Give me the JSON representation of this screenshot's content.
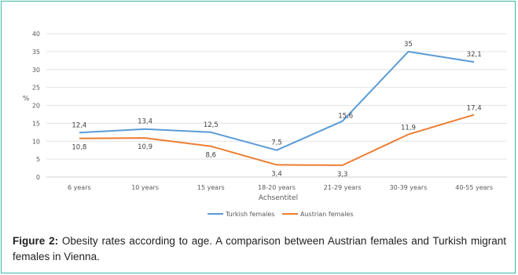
{
  "chart_data": {
    "type": "line",
    "categories": [
      "6 years",
      "10 years",
      "15 years",
      "18-20 years",
      "21-29 years",
      "30-39 years",
      "40-55 years"
    ],
    "series": [
      {
        "name": "Turkish females",
        "color": "#5b9bd5",
        "values": [
          12.4,
          13.4,
          12.5,
          7.5,
          15.6,
          35,
          32.1
        ],
        "labels": [
          "12,4",
          "13,4",
          "12,5",
          "7,5",
          "15,6",
          "35",
          "32,1"
        ]
      },
      {
        "name": "Austrian females",
        "color": "#ed7d31",
        "values": [
          10.8,
          10.9,
          8.6,
          3.4,
          3.3,
          11.9,
          17.4
        ],
        "labels": [
          "10,8",
          "10,9",
          "8,6",
          "3,4",
          "3,3",
          "11,9",
          "17,4"
        ]
      }
    ],
    "xlabel": "Achsentitel",
    "ylabel": "%",
    "ylim": [
      0,
      40
    ],
    "yticks": [
      0,
      5,
      10,
      15,
      20,
      25,
      30,
      35,
      40
    ],
    "grid": true,
    "legend": "bottom"
  },
  "caption": {
    "label": "Figure 2:",
    "text": " Obesity rates according to age. A comparison between Austrian females and Turkish migrant females in Vienna."
  }
}
